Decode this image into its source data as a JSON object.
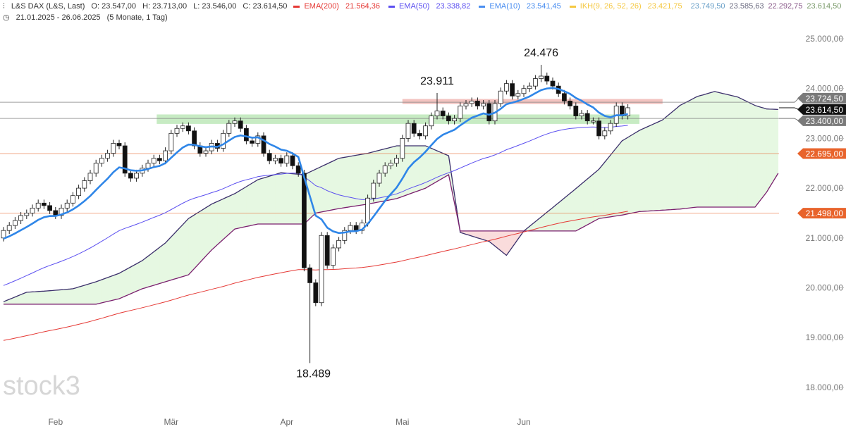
{
  "header": {
    "symbol": "L&S DAX (L&S, Last)",
    "open": "O: 23.547,00",
    "high": "H: 23.713,00",
    "low": "L: 23.546,00",
    "close": "C: 23.614,50",
    "range": "21.01.2025 - 26.06.2025",
    "range_desc": "(5 Monate, 1 Tag)",
    "indicators": [
      {
        "label": "EMA(200)",
        "value": "21.564,36",
        "color": "#e53935"
      },
      {
        "label": "EMA(50)",
        "value": "23.338,82",
        "color": "#5b4ff0"
      },
      {
        "label": "EMA(10)",
        "value": "23.541,45",
        "color": "#4a8ef0"
      },
      {
        "label": "IKH(9, 26, 52, 26)",
        "value": "23.421,75",
        "color": "#f5c842"
      }
    ],
    "ikh_values": [
      {
        "value": "23.749,50",
        "color": "#6aa0c8"
      },
      {
        "value": "23.585,63",
        "color": "#6b6b80"
      },
      {
        "value": "22.292,75",
        "color": "#8a5a8a"
      },
      {
        "value": "23.614,50",
        "color": "#7a9a6a"
      }
    ]
  },
  "watermark": "stock3",
  "chart_data": {
    "type": "candlestick",
    "title": "L&S DAX (L&S, Last)",
    "ylim": [
      17500,
      25300
    ],
    "y_ticks": [
      18000,
      19000,
      20000,
      21000,
      22000,
      23000,
      24000,
      25000
    ],
    "y_tick_labels": [
      "18.000,00",
      "19.000,00",
      "20.000,00",
      "21.000,00",
      "22.000,00",
      "23.000,00",
      "24.000,00",
      "25.000,00"
    ],
    "x_labels": [
      {
        "label": "Feb",
        "index": 9
      },
      {
        "label": "Mär",
        "index": 29
      },
      {
        "label": "Apr",
        "index": 49
      },
      {
        "label": "Mai",
        "index": 69
      },
      {
        "label": "Jun",
        "index": 90
      }
    ],
    "close": [
      21150,
      21250,
      21350,
      21450,
      21500,
      21600,
      21700,
      21650,
      21550,
      21450,
      21600,
      21700,
      21850,
      22000,
      22150,
      22300,
      22500,
      22600,
      22700,
      22900,
      22850,
      22300,
      22200,
      22300,
      22400,
      22500,
      22600,
      22550,
      22750,
      23100,
      23200,
      23250,
      23150,
      22850,
      22700,
      22750,
      22900,
      22800,
      23100,
      23300,
      23350,
      23200,
      22950,
      22900,
      23050,
      22700,
      22550,
      22600,
      22500,
      22650,
      22450,
      22300,
      20400,
      20100,
      19700,
      21050,
      20450,
      20800,
      20950,
      21150,
      21250,
      21150,
      21300,
      21800,
      22100,
      22300,
      22450,
      22500,
      22600,
      23000,
      23300,
      23100,
      23050,
      23250,
      23450,
      23550,
      23450,
      23350,
      23400,
      23650,
      23700,
      23750,
      23650,
      23700,
      23350,
      23700,
      23950,
      24100,
      23850,
      23900,
      24000,
      24050,
      24200,
      24250,
      24150,
      24050,
      23900,
      23750,
      23650,
      23450,
      23500,
      23350,
      23350,
      23050,
      23150,
      23300,
      23650,
      23450,
      23614.5
    ],
    "first_open": 21000,
    "extremes": [
      {
        "index": 53,
        "low": 18489,
        "label": "18.489"
      },
      {
        "index": 75,
        "high": 23911,
        "label": "23.911"
      },
      {
        "index": 93,
        "high": 24476,
        "label": "24.476"
      }
    ],
    "ema_seeds": {
      "ema200": 18920,
      "ema50": 20000,
      "ema10": 20950
    },
    "ichimoku_span_a": [
      [
        0,
        19720
      ],
      [
        4,
        19910
      ],
      [
        8,
        19940
      ],
      [
        12,
        19980
      ],
      [
        16,
        20120
      ],
      [
        20,
        20290
      ],
      [
        24,
        20545
      ],
      [
        28,
        20900
      ],
      [
        32,
        21390
      ],
      [
        36,
        21680
      ],
      [
        40,
        21890
      ],
      [
        44,
        22170
      ],
      [
        48,
        22310
      ],
      [
        52,
        22270
      ],
      [
        54,
        22380
      ],
      [
        58,
        22600
      ],
      [
        63,
        22700
      ],
      [
        68,
        22850
      ],
      [
        73,
        22850
      ],
      [
        77,
        22650
      ],
      [
        79,
        21110
      ],
      [
        84,
        20930
      ],
      [
        87,
        20650
      ],
      [
        90,
        21140
      ],
      [
        95,
        21610
      ],
      [
        99,
        21990
      ],
      [
        103,
        22380
      ],
      [
        107,
        22950
      ],
      [
        110,
        23160
      ],
      [
        114,
        23370
      ],
      [
        117,
        23660
      ],
      [
        120,
        23840
      ],
      [
        123,
        23940
      ],
      [
        127,
        23830
      ],
      [
        130,
        23660
      ],
      [
        132,
        23590
      ],
      [
        134,
        23580
      ]
    ],
    "ichimoku_span_b": [
      [
        0,
        19670
      ],
      [
        16,
        19670
      ],
      [
        20,
        19780
      ],
      [
        24,
        19980
      ],
      [
        28,
        20120
      ],
      [
        32,
        20260
      ],
      [
        36,
        20760
      ],
      [
        40,
        21180
      ],
      [
        44,
        21280
      ],
      [
        52,
        21280
      ],
      [
        54,
        21500
      ],
      [
        58,
        21590
      ],
      [
        63,
        21680
      ],
      [
        68,
        21790
      ],
      [
        73,
        22000
      ],
      [
        77,
        22270
      ],
      [
        79,
        21140
      ],
      [
        99,
        21140
      ],
      [
        103,
        21390
      ],
      [
        107,
        21460
      ],
      [
        110,
        21530
      ],
      [
        117,
        21580
      ],
      [
        120,
        21620
      ],
      [
        130,
        21620
      ],
      [
        132,
        21920
      ],
      [
        134,
        22300
      ]
    ],
    "horizontal_lines": [
      {
        "value": 23724.5,
        "label": "23.724,50",
        "color": "#888888"
      },
      {
        "value": 23400,
        "label": "23.400,00",
        "color": "#888888"
      },
      {
        "value": 22695,
        "label": "22.695,00",
        "color": "#e8632b"
      },
      {
        "value": 21498,
        "label": "21.498,00",
        "color": "#e8632b"
      }
    ],
    "zones": [
      {
        "from_index": 26.5,
        "to_index": 110,
        "low": 23290,
        "high": 23480,
        "color": "#b9e6b4"
      },
      {
        "from_index": 69,
        "to_index": 114,
        "low": 23690,
        "high": 23790,
        "color": "#f0b4b0"
      }
    ],
    "last_price": {
      "value": 23614.5,
      "label": "23.614,50"
    }
  }
}
